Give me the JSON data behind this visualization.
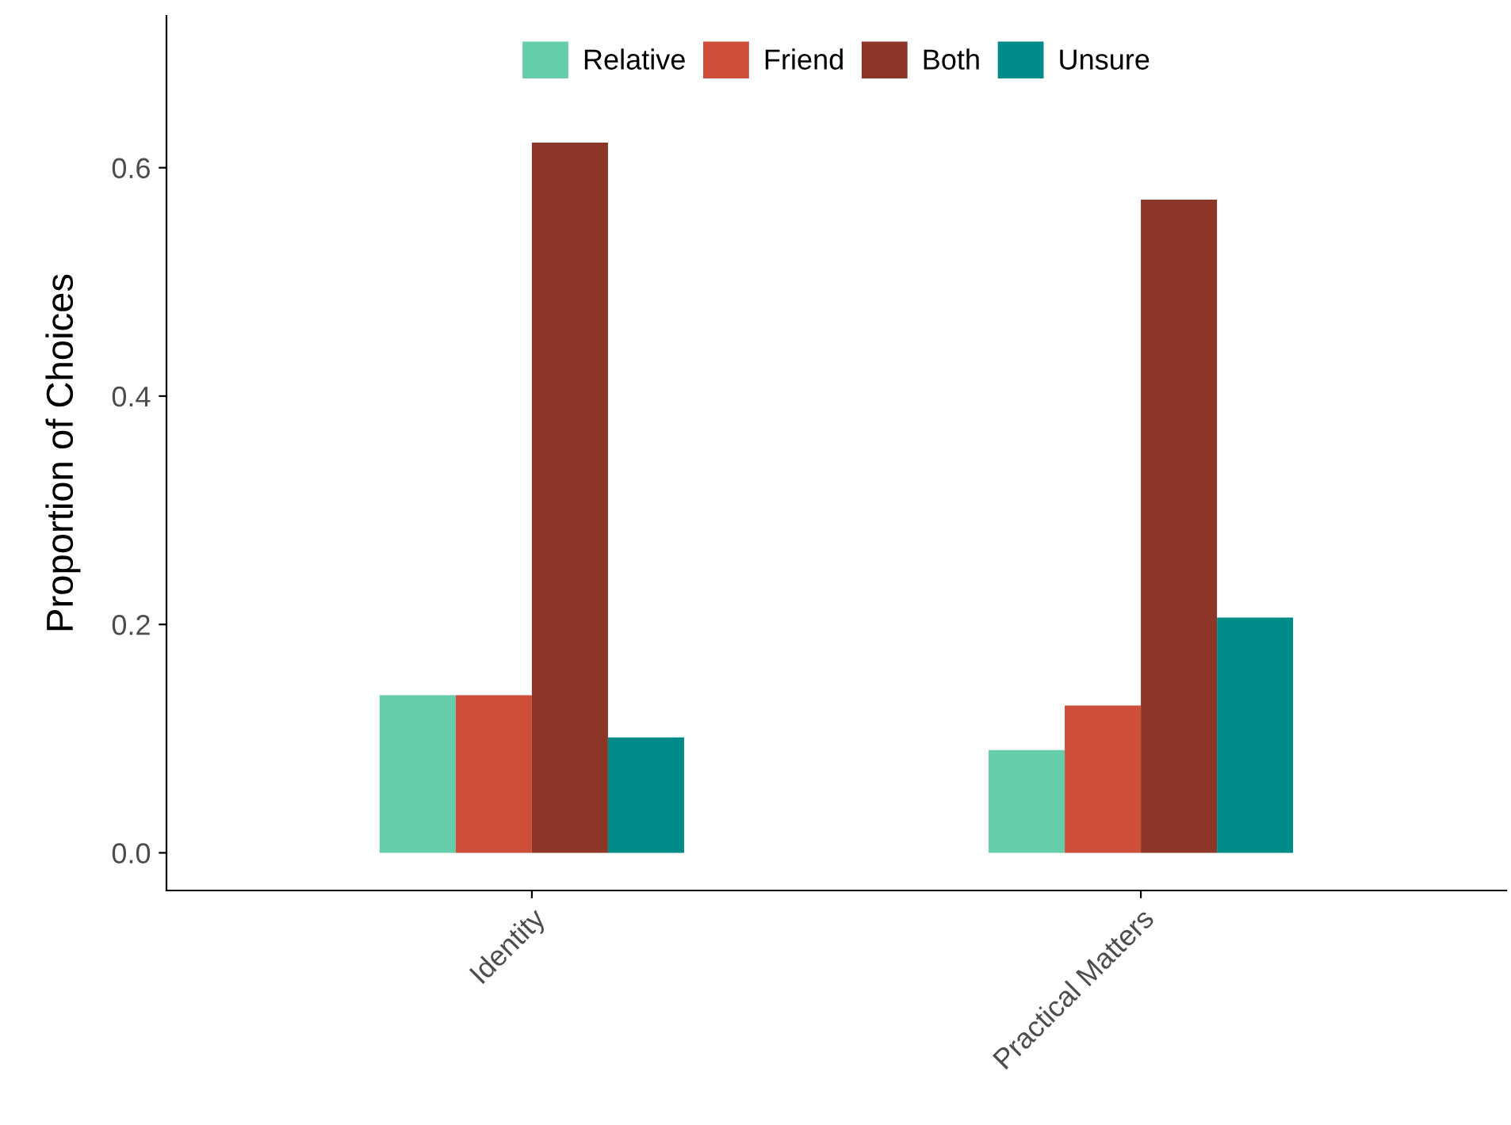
{
  "chart_data": {
    "type": "bar",
    "ylabel": "Proportion of Choices",
    "categories": [
      "Identity",
      "Practical Matters"
    ],
    "series": [
      {
        "name": "Relative",
        "color": "#66cdaa",
        "values": [
          0.138,
          0.09
        ]
      },
      {
        "name": "Friend",
        "color": "#cd4f39",
        "values": [
          0.138,
          0.129
        ]
      },
      {
        "name": "Both",
        "color": "#8b3626",
        "values": [
          0.622,
          0.572
        ]
      },
      {
        "name": "Unsure",
        "color": "#008b8b",
        "values": [
          0.101,
          0.206
        ]
      }
    ],
    "ylim": [
      -0.033,
      0.733
    ],
    "yticks": [
      {
        "value": 0,
        "label": "0.0"
      },
      0.2,
      0.4,
      0.6
    ],
    "grid": false,
    "legend": "top"
  }
}
